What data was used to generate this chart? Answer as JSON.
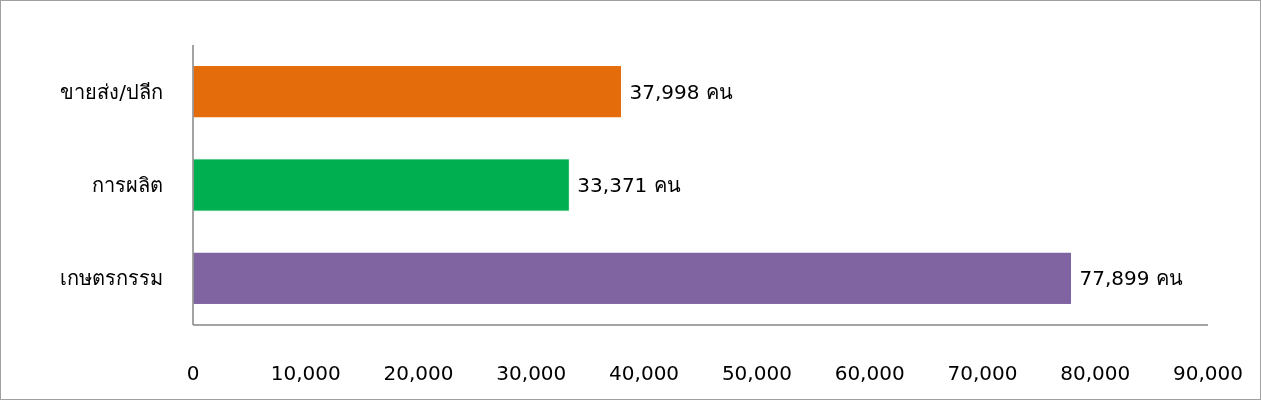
{
  "chart_data": {
    "type": "bar",
    "orientation": "horizontal",
    "categories": [
      "ขายส่ง/ปลีก",
      "การผลิต",
      "เกษตรกรรม"
    ],
    "values": [
      37998,
      33371,
      77899
    ],
    "colors": [
      "#e46c0a",
      "#00b050",
      "#8064a2"
    ],
    "value_labels": [
      "37,998 คน",
      "33,371 คน",
      "77,899 คน"
    ],
    "xlim": [
      0,
      90000
    ],
    "xticks": [
      0,
      {
        "value": 10000,
        "label": "10,000"
      },
      {
        "value": 20000,
        "label": "20,000"
      },
      {
        "value": 30000,
        "label": "30,000"
      },
      {
        "value": 40000,
        "label": "40,000"
      },
      {
        "value": 50000,
        "label": "50,000"
      },
      {
        "value": 60000,
        "label": "60,000"
      },
      {
        "value": 70000,
        "label": "70,000"
      },
      {
        "value": 80000,
        "label": "80,000"
      },
      {
        "value": 90000,
        "label": "90,000"
      }
    ],
    "grid": false
  }
}
